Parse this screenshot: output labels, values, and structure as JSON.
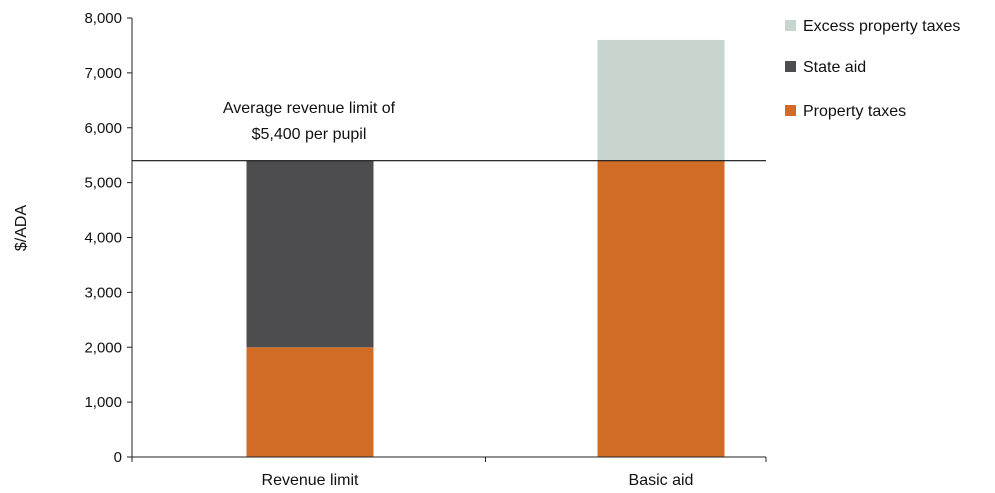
{
  "chart_data": {
    "type": "bar",
    "stacked": true,
    "categories": [
      "Revenue limit",
      "Basic aid"
    ],
    "series": [
      {
        "name": "Property taxes",
        "values": [
          2000,
          5400
        ],
        "color": "#d06c26"
      },
      {
        "name": "State aid",
        "values": [
          3400,
          0
        ],
        "color": "#4d4d4f"
      },
      {
        "name": "Excess property taxes",
        "values": [
          0,
          2200
        ],
        "color": "#c8d5cf"
      }
    ],
    "ylabel": "$/ADA",
    "ylim": [
      0,
      8000
    ],
    "yticks": [
      0,
      1000,
      2000,
      3000,
      4000,
      5000,
      6000,
      7000,
      8000
    ],
    "ytick_labels": [
      "0",
      "1,000",
      "2,000",
      "3,000",
      "4,000",
      "5,000",
      "6,000",
      "7,000",
      "8,000"
    ],
    "reference_line": {
      "value": 5400,
      "label_lines": [
        "Average revenue limit of",
        "$5,400 per pupil"
      ]
    },
    "legend": {
      "placement": "right",
      "order": [
        "Excess property taxes",
        "State aid",
        "Property taxes"
      ]
    },
    "grid": false
  }
}
